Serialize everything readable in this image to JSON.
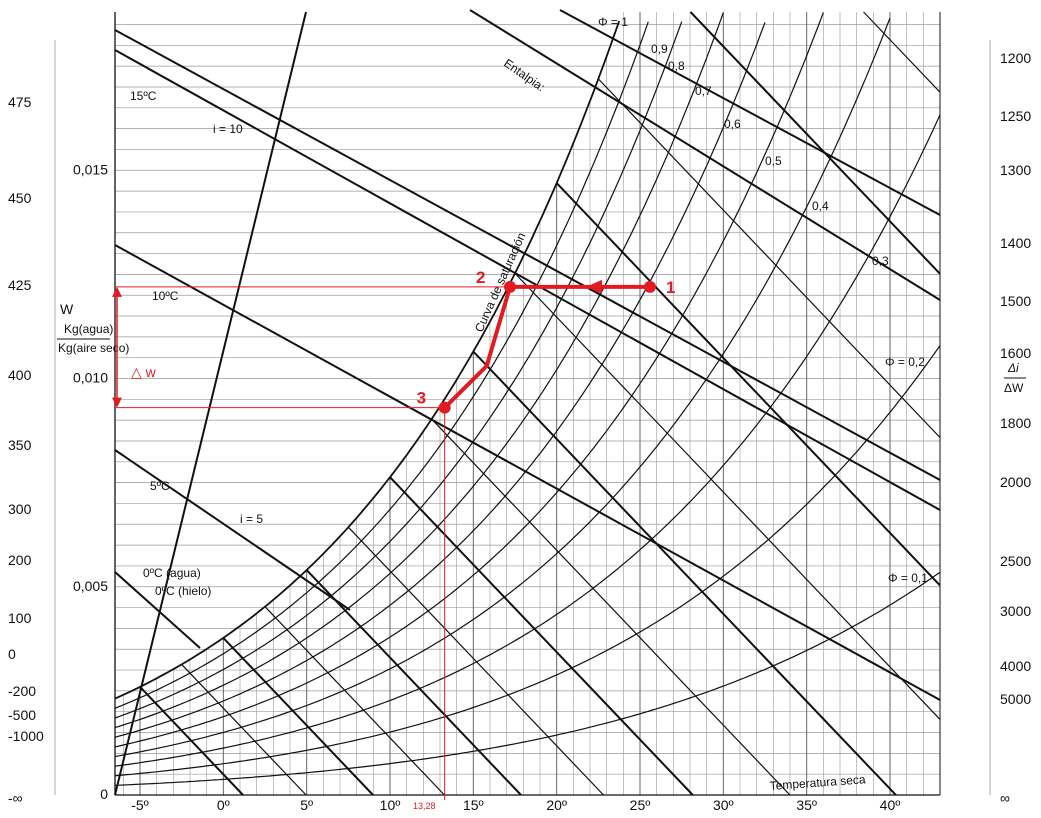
{
  "chart_data": {
    "type": "psychrometric",
    "x_axis": {
      "label": "Temperatura seca",
      "ticks": [
        "-5º",
        "0º",
        "5º",
        "10º",
        "15º",
        "20º",
        "25º",
        "30º",
        "35º",
        "40º"
      ],
      "values": [
        -5,
        0,
        5,
        10,
        15,
        20,
        25,
        30,
        35,
        40
      ],
      "range": [
        -6.5,
        43
      ]
    },
    "y_axis": {
      "label_top": "W",
      "label_num": "Kg(agua)",
      "label_den": "Kg(aire seco)",
      "ticks": [
        "0",
        "0,005",
        "0,010",
        "0,015"
      ],
      "values": [
        0,
        0.005,
        0.01,
        0.015
      ],
      "range": [
        0,
        0.0188
      ]
    },
    "left_scale": [
      "475",
      "450",
      "425",
      "400",
      "350",
      "300",
      "200",
      "100",
      "0",
      "-200",
      "-500",
      "-1000",
      "-∞"
    ],
    "right_scale_label_num": "Δi",
    "right_scale_label_den": "ΔW",
    "right_scale": [
      "1200",
      "1250",
      "1300",
      "1400",
      "1500",
      "1600",
      "1800",
      "2000",
      "2500",
      "3000",
      "4000",
      "5000",
      "∞"
    ],
    "saturation_label": "Curva de saturación",
    "enthalpy_label": "Entalpia:",
    "humidity_labels": [
      "Φ = 1",
      "0,9",
      "0,8",
      "0,7",
      "0,6",
      "0,5",
      "0,4",
      "0,3",
      "Φ = 0,2",
      "Φ = 0,1"
    ],
    "relative_humidity": [
      1.0,
      0.9,
      0.8,
      0.7,
      0.6,
      0.5,
      0.4,
      0.3,
      0.2,
      0.1
    ],
    "enthalpy_annotations": [
      "i = 10",
      "i = 5"
    ],
    "wet_bulb_labels": [
      "15ºC",
      "10ºC",
      "5ºC",
      "0ºC (agua)",
      "0ºC (hielo)"
    ],
    "process": {
      "points": [
        {
          "label": "1",
          "t": 25.6,
          "w": 0.0122
        },
        {
          "label": "2",
          "t": 17.2,
          "w": 0.0122
        },
        {
          "label": "3",
          "t": 13.28,
          "w": 0.0093
        }
      ],
      "bend": {
        "t": 15.8,
        "w": 0.0103
      },
      "delta_label": "△ w",
      "t3_label": "13,28"
    },
    "colors": {
      "process": "#e21b22",
      "curves": "#111111",
      "grid": "#9a9a9a"
    }
  }
}
